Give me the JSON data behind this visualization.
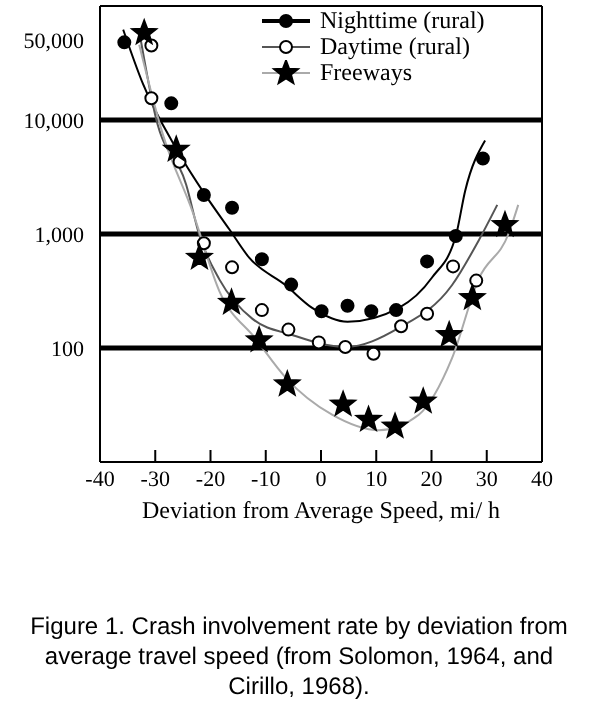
{
  "chart_data": {
    "type": "scatter",
    "title": "Figure 1.   Crash involvement rate by deviation from average travel speed (from Solomon, 1964, and Cirillo, 1968).",
    "xlabel": "Deviation from Average Speed, mi/ h",
    "xlim": [
      -40,
      40
    ],
    "xticks": [
      -40,
      -30,
      -20,
      -10,
      0,
      10,
      20,
      30,
      40
    ],
    "ylim": [
      10,
      100000
    ],
    "yticks": [
      100,
      {
        "value": 1000,
        "label": "1,000"
      },
      {
        "value": 10000,
        "label": "10,000"
      },
      {
        "value": 50000,
        "label": "50,000"
      }
    ],
    "log": "y",
    "legend": "top right",
    "ref_lines": [
      {
        "axis": "y",
        "value": 100,
        "color": "#000000"
      },
      {
        "axis": "y",
        "value": 1000,
        "color": "#000000"
      },
      {
        "axis": "y",
        "value": 10000,
        "color": "#000000"
      }
    ],
    "series": [
      {
        "name": "Nighttime (rural)",
        "marker": "circle",
        "color": "#000000",
        "x": [
          -35.6,
          -27.1,
          -21.2,
          -16.1,
          -10.7,
          -5.4,
          0.1,
          4.8,
          9.1,
          13.6,
          19.2,
          24.4,
          29.3
        ],
        "values": [
          48000,
          14000,
          2200,
          1700,
          600,
          360,
          210,
          235,
          210,
          215,
          575,
          960,
          4600
        ]
      },
      {
        "type": "line",
        "color": "#000000",
        "x": [
          -35.8,
          -32.2,
          -26.2,
          -20.8,
          -16.6,
          -13,
          -6.4,
          -1.6,
          4.8,
          14.1,
          20.1,
          24.4,
          26.1,
          29.7
        ],
        "values": [
          62000,
          20600,
          5600,
          2150,
          1100,
          620,
          355,
          225,
          170,
          225,
          415,
          960,
          2400,
          6600
        ]
      },
      {
        "name": "Daytime (rural)",
        "marker": "circle",
        "color": "#ffffff",
        "x": [
          -30.7,
          -30.7,
          -25.6,
          -21.2,
          -16.1,
          -10.7,
          -5.9,
          -0.4,
          4.4,
          9.5,
          14.5,
          19.2,
          23.9,
          28.1
        ],
        "values": [
          45000,
          15500,
          4300,
          830,
          510,
          215,
          145,
          112,
          102,
          89,
          155,
          200,
          520,
          390
        ]
      },
      {
        "type": "line",
        "color": "#555555",
        "x": [
          -32.9,
          -29.9,
          -24.4,
          -22,
          -18.4,
          -12.4,
          -5.2,
          4.4,
          14.1,
          23.7,
          28.5,
          31.9
        ],
        "values": [
          60000,
          10500,
          2700,
          970,
          400,
          180,
          130,
          102,
          150,
          355,
          870,
          1800
        ]
      },
      {
        "name": "Freeways",
        "marker": "star",
        "color": "#000000",
        "x": [
          -32,
          -26.2,
          -22,
          -16.2,
          -11.2,
          -6.1,
          4,
          8.6,
          13.4,
          18.5,
          23.2,
          27.4,
          33.3
        ],
        "values": [
          58000,
          5500,
          620,
          250,
          117,
          48,
          32,
          23.5,
          20.5,
          34,
          130,
          275,
          1200
        ]
      },
      {
        "type": "line",
        "color": "#aaaaaa",
        "x": [
          -32.9,
          -28.6,
          -23.2,
          -18.4,
          -11.8,
          -6.4,
          2,
          10.5,
          17.7,
          23.7,
          28.5,
          34,
          35.7
        ],
        "values": [
          45700,
          7400,
          1550,
          316,
          120,
          55,
          26,
          19,
          26,
          81,
          400,
          1020,
          1800
        ]
      }
    ]
  }
}
